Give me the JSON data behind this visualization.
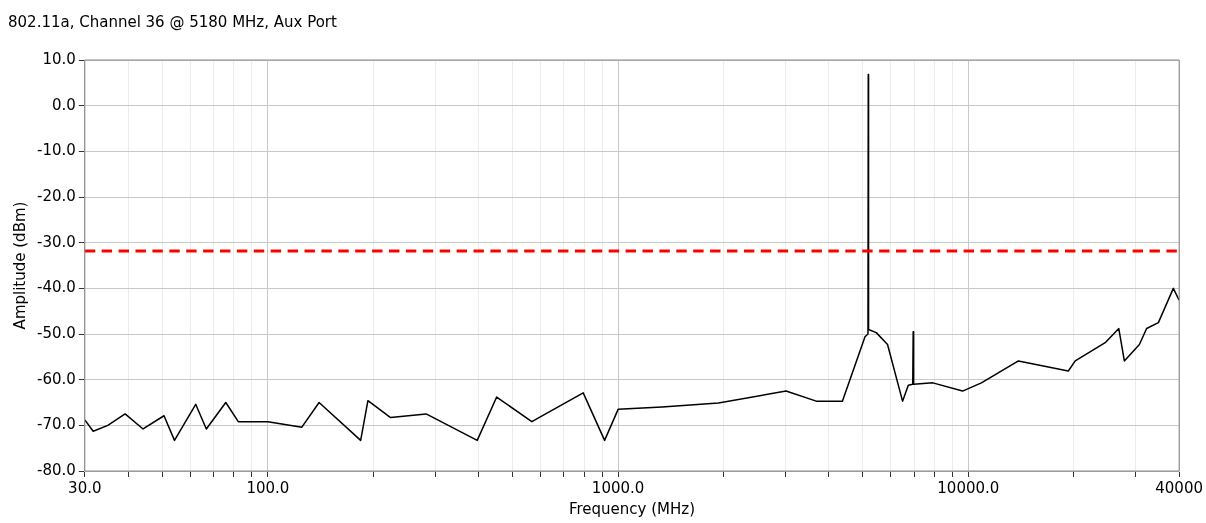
{
  "chart_data": {
    "type": "line",
    "title": "802.11a, Channel 36 @ 5180 MHz, Aux Port",
    "xlabel": "Frequency (MHz)",
    "ylabel": "Amplitude (dBm)",
    "log": "x",
    "grid": true,
    "legend": false,
    "marker": "none",
    "line_style": "solid",
    "xlim": [
      30,
      40000
    ],
    "xticks": [
      {
        "value": 30,
        "label": "30.0"
      },
      {
        "value": 40,
        "label": null
      },
      {
        "value": 50,
        "label": null
      },
      {
        "value": 60,
        "label": null
      },
      {
        "value": 70,
        "label": null
      },
      {
        "value": 80,
        "label": null
      },
      {
        "value": 90,
        "label": null
      },
      {
        "value": 100,
        "label": "100.0"
      },
      {
        "value": 200,
        "label": null
      },
      {
        "value": 300,
        "label": null
      },
      {
        "value": 400,
        "label": null
      },
      {
        "value": 500,
        "label": null
      },
      {
        "value": 600,
        "label": null
      },
      {
        "value": 700,
        "label": null
      },
      {
        "value": 800,
        "label": null
      },
      {
        "value": 900,
        "label": null
      },
      {
        "value": 1000,
        "label": "1000.0"
      },
      {
        "value": 2000,
        "label": null
      },
      {
        "value": 3000,
        "label": null
      },
      {
        "value": 4000,
        "label": null
      },
      {
        "value": 5000,
        "label": null
      },
      {
        "value": 6000,
        "label": null
      },
      {
        "value": 7000,
        "label": null
      },
      {
        "value": 8000,
        "label": null
      },
      {
        "value": 9000,
        "label": null
      },
      {
        "value": 10000,
        "label": "10000.0"
      },
      {
        "value": 20000,
        "label": null
      },
      {
        "value": 30000,
        "label": null
      },
      {
        "value": 40000,
        "label": "40000"
      }
    ],
    "ylim": [
      -80,
      10
    ],
    "yticks": [
      {
        "value": -80,
        "label": "-80.0"
      },
      {
        "value": -70,
        "label": "-70.0"
      },
      {
        "value": -60,
        "label": "-60.0"
      },
      {
        "value": -50,
        "label": "-50.0"
      },
      {
        "value": -40,
        "label": "-40.0"
      },
      {
        "value": -30,
        "label": "-30.0"
      },
      {
        "value": -20,
        "label": "-20.0"
      },
      {
        "value": -10,
        "label": "-10.0"
      },
      {
        "value": 0,
        "label": "0.0"
      },
      {
        "value": 10,
        "label": "10.0"
      }
    ],
    "ref_lines": [
      {
        "axis": "y",
        "value": -31.8,
        "color": "#ff0000",
        "line_style": "dashed"
      }
    ],
    "series": [
      {
        "color": "#000000",
        "x": [
          30,
          31.7,
          34.9,
          39.1,
          44,
          50.5,
          54.1,
          62.2,
          66.7,
          75.8,
          82.3,
          100,
          125,
          140,
          184,
          193,
          224,
          283,
          396,
          450,
          567,
          795,
          915,
          1000,
          1335,
          1934,
          3017,
          3680,
          4370,
          4710,
          5070,
          5170,
          5180,
          5190,
          5460,
          5880,
          6490,
          6740,
          6940,
          6960,
          6980,
          7920,
          9630,
          10900,
          13900,
          19300,
          20200,
          24600,
          26900,
          27900,
          30800,
          32300,
          34900,
          38500,
          40000
        ],
        "values": [
          -68.8,
          -71.3,
          -70,
          -67.5,
          -70.8,
          -67.9,
          -73.3,
          -65.4,
          -70.8,
          -65,
          -69.2,
          -69.2,
          -70.4,
          -65,
          -73.3,
          -64.6,
          -68.3,
          -67.5,
          -73.3,
          -63.8,
          -69.2,
          -62.9,
          -73.3,
          -66.5,
          -66,
          -65.1,
          -62.5,
          -64.7,
          -64.7,
          -57.6,
          -50.6,
          -50,
          6.8,
          -49,
          -49.7,
          -52.3,
          -64.7,
          -61.2,
          -61,
          -49.5,
          -61,
          -60.7,
          -62.5,
          -60.7,
          -55.9,
          -58.1,
          -55.9,
          -51.9,
          -48.8,
          -55.9,
          -52.3,
          -48.8,
          -47.5,
          -40,
          -42.6
        ]
      }
    ]
  }
}
